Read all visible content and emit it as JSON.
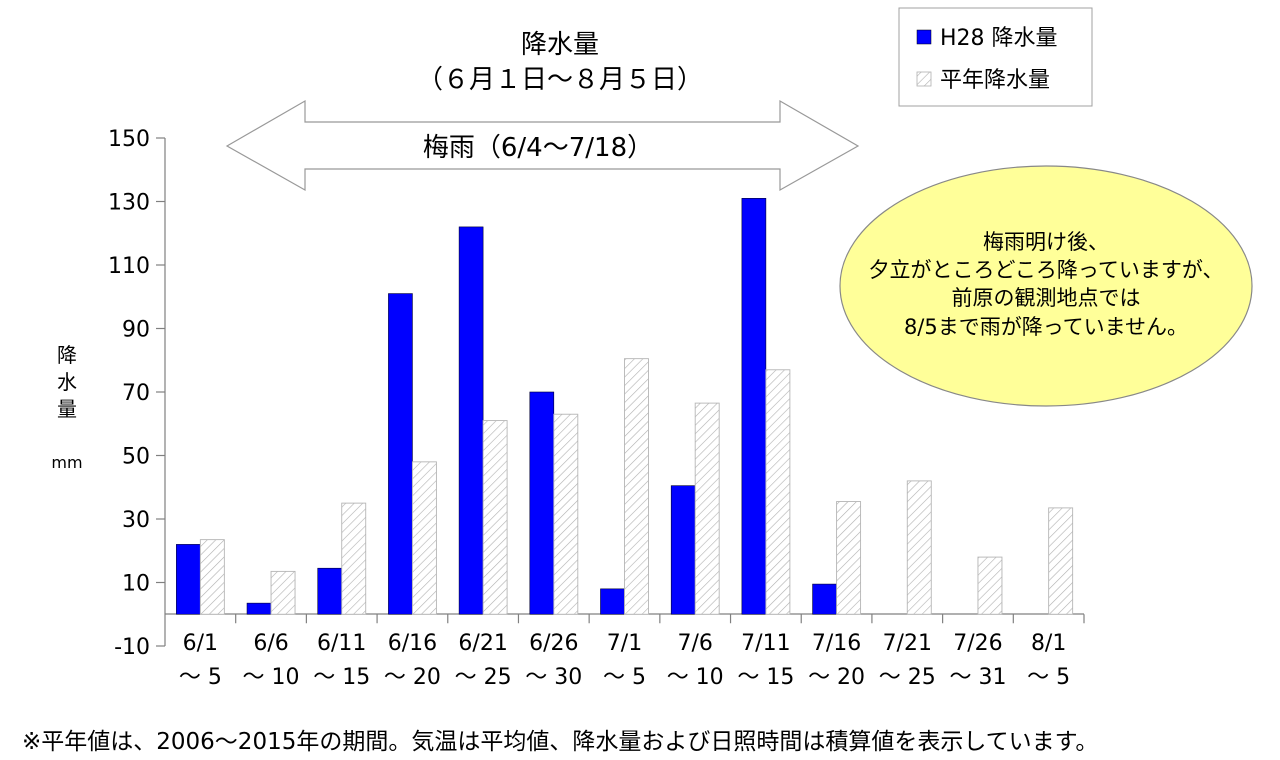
{
  "chart_data": {
    "type": "bar",
    "title": "降水量",
    "subtitle": "（６月１日～８月５日）",
    "ylabel": "降水量",
    "yunit": "mm",
    "ylim": [
      -10,
      150
    ],
    "yticks": [
      -10,
      10,
      30,
      50,
      70,
      90,
      110,
      130,
      150
    ],
    "categories": [
      {
        "line1": "6/1",
        "line2": "～ 5"
      },
      {
        "line1": "6/6",
        "line2": "～ 10"
      },
      {
        "line1": "6/11",
        "line2": "～ 15"
      },
      {
        "line1": "6/16",
        "line2": "～ 20"
      },
      {
        "line1": "6/21",
        "line2": "～ 25"
      },
      {
        "line1": "6/26",
        "line2": "～ 30"
      },
      {
        "line1": "7/1",
        "line2": "～ 5"
      },
      {
        "line1": "7/6",
        "line2": "～ 10"
      },
      {
        "line1": "7/11",
        "line2": "～ 15"
      },
      {
        "line1": "7/16",
        "line2": "～ 20"
      },
      {
        "line1": "7/21",
        "line2": "～ 25"
      },
      {
        "line1": "7/26",
        "line2": "～ 31"
      },
      {
        "line1": "8/1",
        "line2": "～ 5"
      }
    ],
    "series": [
      {
        "name": "H28 降水量",
        "color": "#0000ff",
        "pattern": "solid",
        "values": [
          22,
          3.5,
          14.5,
          101,
          122,
          70,
          8,
          40.5,
          131,
          9.5,
          null,
          null,
          null
        ]
      },
      {
        "name": "平年降水量",
        "color": "#ffffff",
        "pattern": "diagonal-hatch",
        "values": [
          23.5,
          13.5,
          35,
          48,
          61,
          63,
          80.5,
          66.5,
          77,
          35.5,
          42,
          18,
          33.5
        ]
      }
    ],
    "legend_position": "top-right",
    "grid": false,
    "annotations": {
      "rainy_season": "梅雨（6/4～7/18）",
      "bubble": [
        "梅雨明け後、",
        "夕立がところどころ降っていますが、",
        "前原の観測地点では",
        "8/5まで雨が降っていません。"
      ]
    }
  },
  "footnote": "※平年値は、2006～2015年の期間。気温は平均値、降水量および日照時間は積算値を表示しています。",
  "colors": {
    "bubble_fill": "#ffff99",
    "axis": "#808080",
    "hatch": "#a0a0a0"
  }
}
